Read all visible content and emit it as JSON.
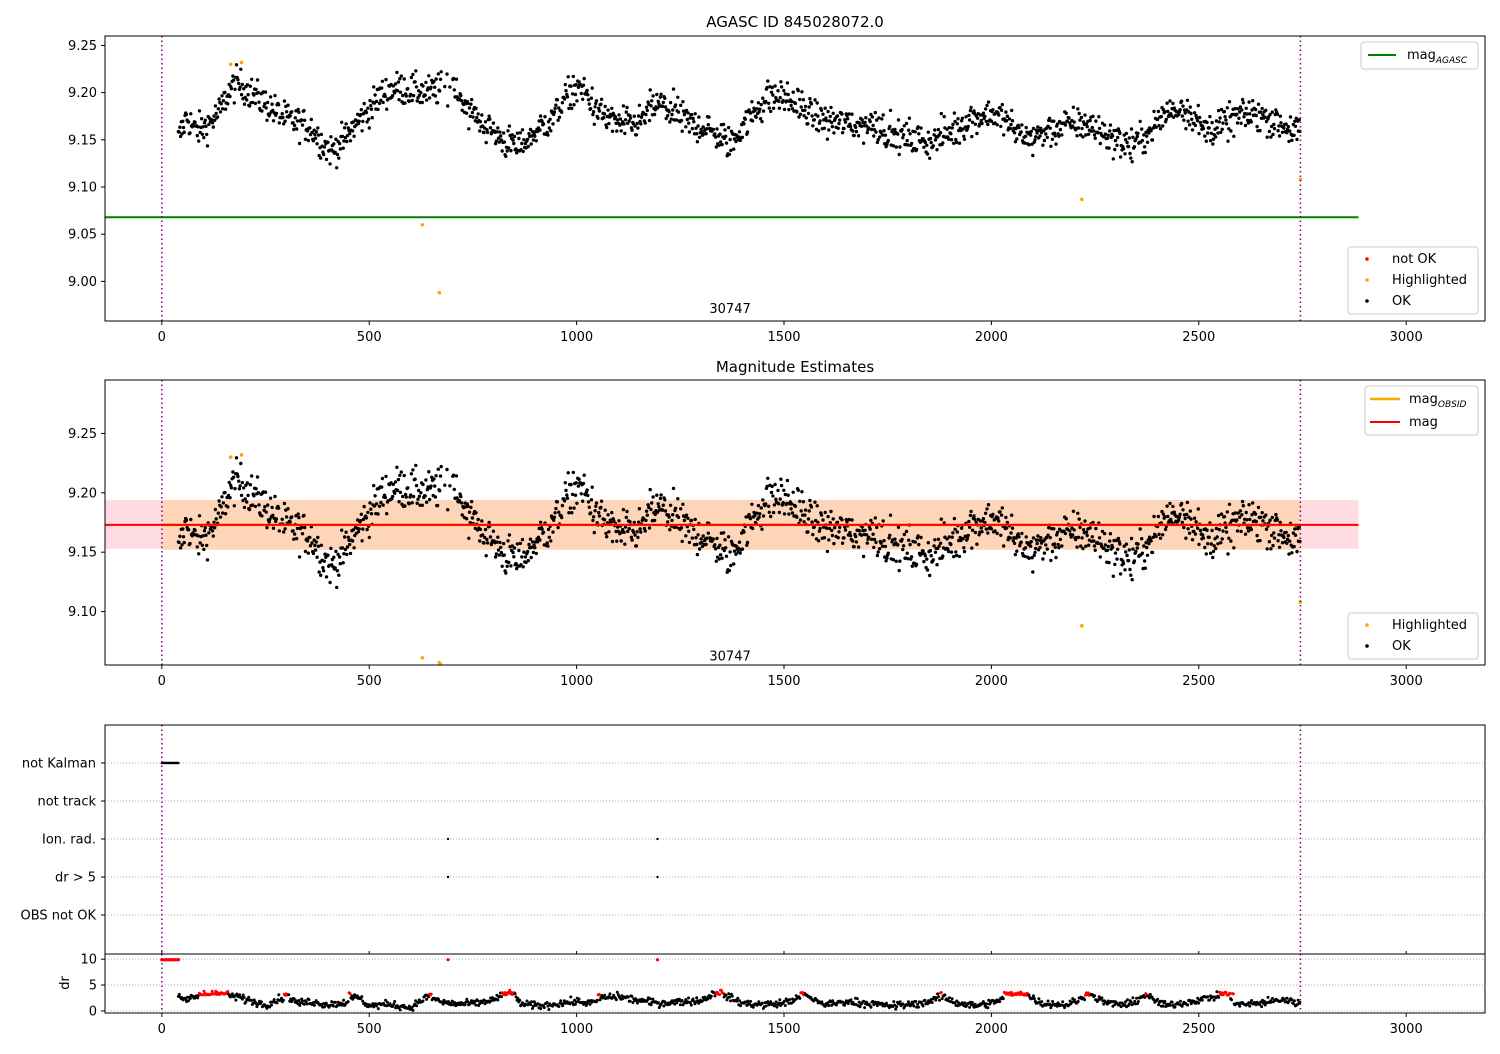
{
  "chart_data": [
    {
      "type": "scatter",
      "title": "AGASC ID 845028072.0",
      "xlabel": "",
      "ylabel": "",
      "xlim": [
        -137,
        3190
      ],
      "ylim": [
        8.958,
        9.26
      ],
      "xticks": [
        0,
        500,
        1000,
        1500,
        2000,
        2500,
        3000
      ],
      "yticks": [
        9.0,
        9.05,
        9.1,
        9.15,
        9.2,
        9.25
      ],
      "ytick_labels": [
        "9.00",
        "9.05",
        "9.10",
        "9.15",
        "9.20",
        "9.25"
      ],
      "vlines_x": [
        0,
        2745
      ],
      "obsid_label": {
        "text": "30747",
        "x": 1370,
        "y": 8.972
      },
      "mag_agasc": 9.068,
      "mag_agasc_xrange": [
        -137,
        2885
      ],
      "legend_lines": [
        {
          "label": "mag",
          "sub": "AGASC",
          "color": "#008000"
        }
      ],
      "legend_points": [
        {
          "label": "not OK",
          "color": "#ff0000"
        },
        {
          "label": "Highlighted",
          "color": "#ffa500"
        },
        {
          "label": "OK",
          "color": "#000000"
        }
      ],
      "ok_trend": [
        [
          40,
          9.15
        ],
        [
          60,
          9.175
        ],
        [
          80,
          9.16
        ],
        [
          100,
          9.162
        ],
        [
          120,
          9.17
        ],
        [
          140,
          9.18
        ],
        [
          160,
          9.2
        ],
        [
          180,
          9.21
        ],
        [
          200,
          9.205
        ],
        [
          220,
          9.198
        ],
        [
          240,
          9.192
        ],
        [
          260,
          9.185
        ],
        [
          280,
          9.178
        ],
        [
          300,
          9.172
        ],
        [
          330,
          9.168
        ],
        [
          360,
          9.163
        ],
        [
          390,
          9.145
        ],
        [
          410,
          9.138
        ],
        [
          440,
          9.15
        ],
        [
          470,
          9.168
        ],
        [
          500,
          9.182
        ],
        [
          530,
          9.198
        ],
        [
          560,
          9.205
        ],
        [
          600,
          9.203
        ],
        [
          640,
          9.2
        ],
        [
          680,
          9.205
        ],
        [
          700,
          9.21
        ],
        [
          720,
          9.195
        ],
        [
          760,
          9.172
        ],
        [
          800,
          9.158
        ],
        [
          830,
          9.148
        ],
        [
          860,
          9.142
        ],
        [
          900,
          9.158
        ],
        [
          940,
          9.172
        ],
        [
          970,
          9.192
        ],
        [
          1000,
          9.205
        ],
        [
          1020,
          9.2
        ],
        [
          1050,
          9.18
        ],
        [
          1080,
          9.172
        ],
        [
          1110,
          9.165
        ],
        [
          1150,
          9.168
        ],
        [
          1180,
          9.183
        ],
        [
          1200,
          9.188
        ],
        [
          1230,
          9.18
        ],
        [
          1270,
          9.168
        ],
        [
          1300,
          9.165
        ],
        [
          1340,
          9.155
        ],
        [
          1370,
          9.145
        ],
        [
          1400,
          9.165
        ],
        [
          1430,
          9.18
        ],
        [
          1460,
          9.195
        ],
        [
          1500,
          9.195
        ],
        [
          1530,
          9.188
        ],
        [
          1560,
          9.178
        ],
        [
          1600,
          9.17
        ],
        [
          1640,
          9.168
        ],
        [
          1680,
          9.165
        ],
        [
          1720,
          9.168
        ],
        [
          1760,
          9.155
        ],
        [
          1800,
          9.152
        ],
        [
          1850,
          9.148
        ],
        [
          1900,
          9.158
        ],
        [
          1950,
          9.172
        ],
        [
          2000,
          9.178
        ],
        [
          2030,
          9.172
        ],
        [
          2060,
          9.158
        ],
        [
          2100,
          9.152
        ],
        [
          2140,
          9.16
        ],
        [
          2180,
          9.165
        ],
        [
          2220,
          9.168
        ],
        [
          2260,
          9.16
        ],
        [
          2300,
          9.15
        ],
        [
          2340,
          9.143
        ],
        [
          2380,
          9.158
        ],
        [
          2420,
          9.178
        ],
        [
          2460,
          9.185
        ],
        [
          2490,
          9.175
        ],
        [
          2510,
          9.16
        ],
        [
          2550,
          9.165
        ],
        [
          2600,
          9.175
        ],
        [
          2640,
          9.178
        ],
        [
          2680,
          9.17
        ],
        [
          2745,
          9.158
        ]
      ],
      "highlighted": [
        [
          166,
          9.23
        ],
        [
          192,
          9.232
        ],
        [
          628,
          9.06
        ],
        [
          669,
          8.988
        ],
        [
          2218,
          9.087
        ],
        [
          2745,
          9.108
        ]
      ]
    },
    {
      "type": "scatter",
      "title": "Magnitude Estimates",
      "xlabel": "",
      "ylabel": "",
      "xlim": [
        -137,
        3190
      ],
      "ylim": [
        9.055,
        9.295
      ],
      "xticks": [
        0,
        500,
        1000,
        1500,
        2000,
        2500,
        3000
      ],
      "yticks": [
        9.1,
        9.15,
        9.2,
        9.25
      ],
      "ytick_labels": [
        "9.10",
        "9.15",
        "9.20",
        "9.25"
      ],
      "vlines_x": [
        0,
        2745
      ],
      "obsid_label": {
        "text": "30747",
        "x": 1370,
        "y": 9.063
      },
      "mag": 9.173,
      "mag_band": [
        9.153,
        9.194
      ],
      "mag_xrange": [
        -137,
        2885
      ],
      "mag_obsid": 9.173,
      "mag_obsid_band": [
        9.152,
        9.194
      ],
      "mag_obsid_xrange": [
        0,
        2745
      ],
      "legend_lines": [
        {
          "label": "mag",
          "sub": "OBSID",
          "color": "#ffa500"
        },
        {
          "label": "mag",
          "sub": "",
          "color": "#ff0000"
        }
      ],
      "legend_points": [
        {
          "label": "Highlighted",
          "color": "#ffa500"
        },
        {
          "label": "OK",
          "color": "#000000"
        }
      ],
      "highlighted": [
        [
          166,
          9.23
        ],
        [
          192,
          9.232
        ],
        [
          628,
          9.061
        ],
        [
          669,
          9.057
        ],
        [
          671,
          9.056
        ],
        [
          2218,
          9.088
        ],
        [
          2745,
          9.108
        ]
      ]
    },
    {
      "type": "scatter",
      "title": "",
      "xlabel": "",
      "ylabel": "",
      "xlim": [
        -137,
        3190
      ],
      "flag_categories": [
        "not Kalman",
        "not track",
        "Ion. rad.",
        "dr > 5",
        "OBS not OK"
      ],
      "flags": {
        "not Kalman": {
          "x_range": [
            0,
            40
          ]
        },
        "not track": {
          "x_points": []
        },
        "Ion. rad.": {
          "x_points": [
            690,
            1195
          ]
        },
        "dr > 5": {
          "x_points": [
            690,
            1195
          ]
        },
        "OBS not OK": {
          "x_points": []
        }
      },
      "vlines_x": [
        0,
        2745
      ]
    },
    {
      "type": "scatter",
      "title": "",
      "xlabel": "",
      "ylabel": "dr",
      "xlim": [
        -137,
        3190
      ],
      "ylim": [
        -0.4,
        11.0
      ],
      "xticks": [
        0,
        500,
        1000,
        1500,
        2000,
        2500,
        3000
      ],
      "yticks": [
        0,
        5,
        10
      ],
      "ytick_labels": [
        "0",
        "5",
        "10"
      ],
      "vlines_x": [
        0,
        2745
      ],
      "dr_trend": [
        [
          40,
          2.5
        ],
        [
          60,
          2.2
        ],
        [
          80,
          2.8
        ],
        [
          100,
          3.2
        ],
        [
          130,
          3.3
        ],
        [
          160,
          3.0
        ],
        [
          190,
          2.6
        ],
        [
          220,
          1.8
        ],
        [
          250,
          1.2
        ],
        [
          280,
          2.2
        ],
        [
          300,
          2.8
        ],
        [
          330,
          1.5
        ],
        [
          360,
          1.8
        ],
        [
          400,
          1.2
        ],
        [
          440,
          1.6
        ],
        [
          470,
          2.8
        ],
        [
          500,
          1.0
        ],
        [
          550,
          1.3
        ],
        [
          600,
          0.6
        ],
        [
          640,
          2.8
        ],
        [
          680,
          1.6
        ],
        [
          720,
          1.3
        ],
        [
          760,
          1.5
        ],
        [
          800,
          2.2
        ],
        [
          840,
          3.6
        ],
        [
          870,
          1.2
        ],
        [
          920,
          1.0
        ],
        [
          960,
          1.5
        ],
        [
          1000,
          1.8
        ],
        [
          1040,
          1.5
        ],
        [
          1060,
          2.5
        ],
        [
          1100,
          2.8
        ],
        [
          1150,
          2.0
        ],
        [
          1200,
          1.5
        ],
        [
          1250,
          1.8
        ],
        [
          1300,
          2.0
        ],
        [
          1340,
          3.8
        ],
        [
          1370,
          2.5
        ],
        [
          1400,
          1.5
        ],
        [
          1450,
          1.2
        ],
        [
          1500,
          1.5
        ],
        [
          1550,
          3.0
        ],
        [
          1600,
          1.2
        ],
        [
          1650,
          1.8
        ],
        [
          1700,
          1.5
        ],
        [
          1750,
          1.0
        ],
        [
          1800,
          1.2
        ],
        [
          1850,
          1.8
        ],
        [
          1880,
          2.8
        ],
        [
          1920,
          1.5
        ],
        [
          1960,
          1.0
        ],
        [
          2000,
          1.5
        ],
        [
          2040,
          2.8
        ],
        [
          2080,
          3.3
        ],
        [
          2120,
          1.5
        ],
        [
          2180,
          1.2
        ],
        [
          2240,
          3.0
        ],
        [
          2280,
          1.5
        ],
        [
          2330,
          1.2
        ],
        [
          2370,
          3.0
        ],
        [
          2420,
          1.0
        ],
        [
          2480,
          1.8
        ],
        [
          2520,
          2.5
        ],
        [
          2560,
          3.0
        ],
        [
          2600,
          1.2
        ],
        [
          2650,
          1.5
        ],
        [
          2700,
          2.2
        ],
        [
          2745,
          1.5
        ]
      ],
      "dr_high_ranges": [
        [
          90,
          160
        ],
        [
          295,
          305
        ],
        [
          450,
          455
        ],
        [
          645,
          650
        ],
        [
          820,
          850
        ],
        [
          1050,
          1055
        ],
        [
          1335,
          1355
        ],
        [
          1540,
          1550
        ],
        [
          1875,
          1880
        ],
        [
          2030,
          2090
        ],
        [
          2225,
          2240
        ],
        [
          2370,
          2375
        ],
        [
          2550,
          2575
        ],
        [
          2580,
          2585
        ]
      ],
      "dr_flagged_points": [
        [
          0,
          9.9
        ],
        [
          10,
          9.9
        ],
        [
          20,
          9.9
        ],
        [
          30,
          9.9
        ],
        [
          40,
          9.9
        ],
        [
          690,
          9.9
        ],
        [
          1195,
          9.9
        ]
      ]
    }
  ]
}
